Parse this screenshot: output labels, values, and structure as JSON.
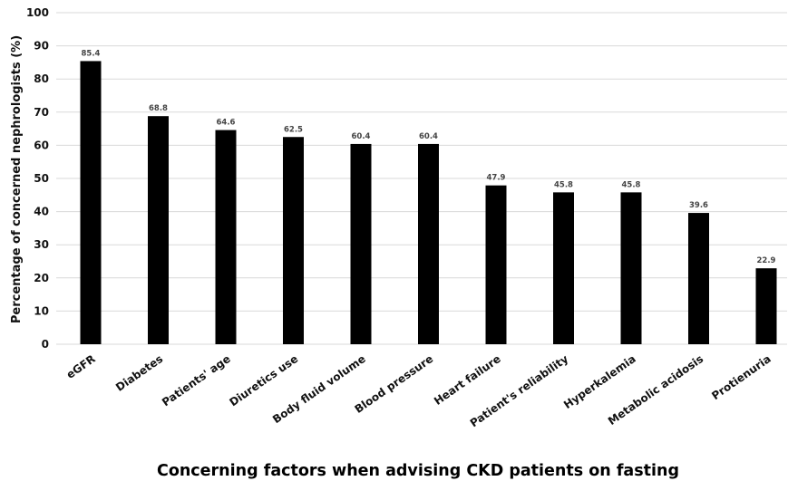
{
  "chart_data": {
    "type": "bar",
    "categories": [
      "eGFR",
      "Diabetes",
      "Patients' age",
      "Diuretics use",
      "Body fluid volume",
      "Blood pressure",
      "Heart failure",
      "Patient's reliability",
      "Hyperkalemia",
      "Metabolic acidosis",
      "Protienuria"
    ],
    "values": [
      85.4,
      68.8,
      64.6,
      62.5,
      60.4,
      60.4,
      47.9,
      45.8,
      45.8,
      39.6,
      22.9
    ],
    "data_labels": [
      "85.4",
      "68.8",
      "64.6",
      "62.5",
      "60.4",
      "60.4",
      "47.9",
      "45.8",
      "45.8",
      "39.6",
      "22.9"
    ],
    "xlabel": "Concerning factors when advising CKD patients on fasting",
    "ylabel": "Percentage of concerned nephrologists (%)",
    "ylim": [
      0,
      100
    ],
    "yticks": [
      0,
      10,
      20,
      30,
      40,
      50,
      60,
      70,
      80,
      90,
      100
    ],
    "grid": true,
    "bar_color": "#000000",
    "grid_color": "#d9d9d9"
  }
}
